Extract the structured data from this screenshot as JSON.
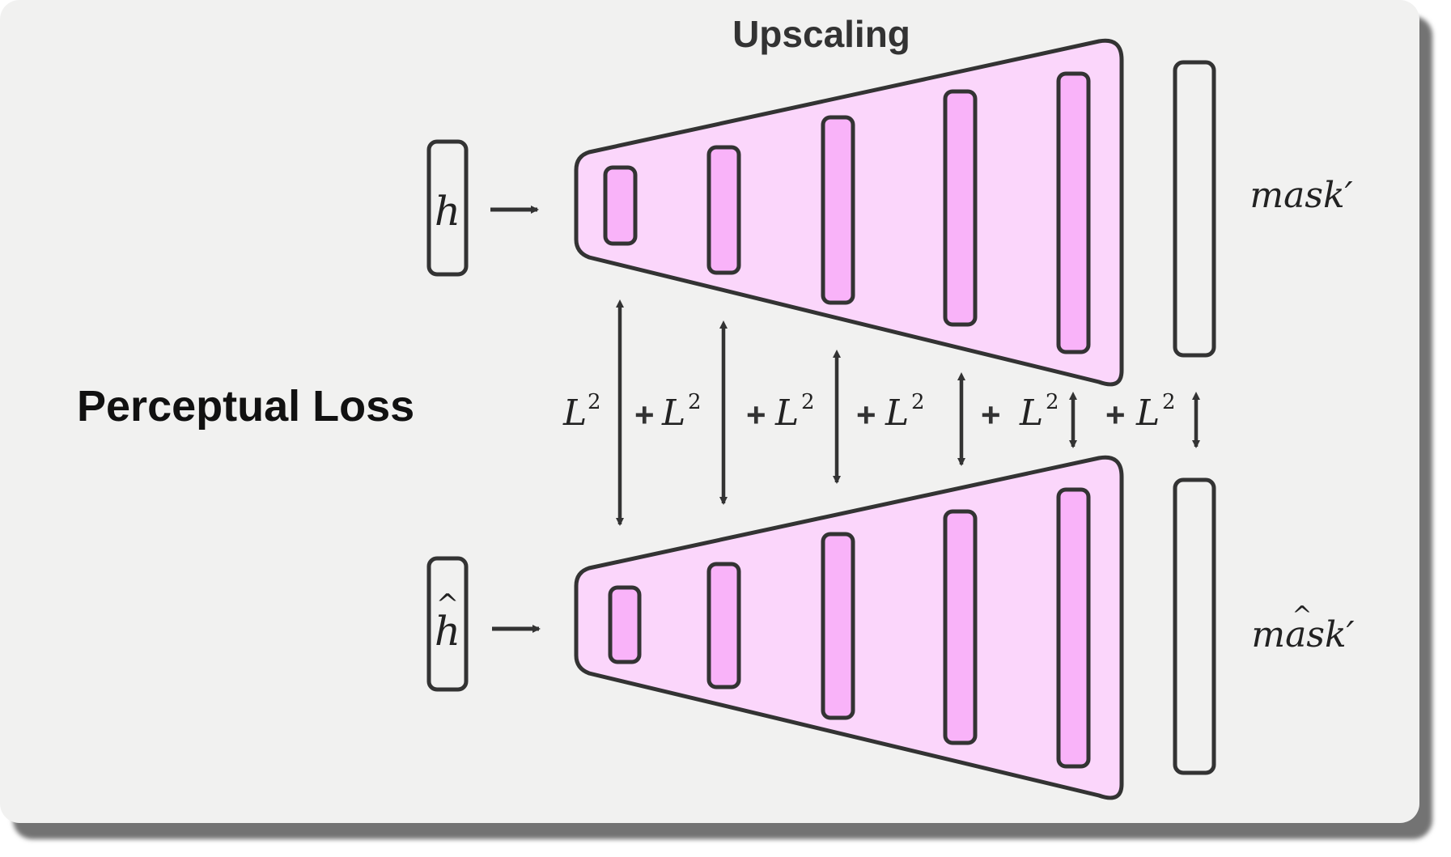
{
  "title": "Upscaling",
  "side_label": "Perceptual Loss",
  "inputs": {
    "top": "h",
    "bottom": "h",
    "bottom_hat": "^"
  },
  "outputs": {
    "top": "mask′",
    "bottom": "mask′",
    "bottom_hat": "^"
  },
  "loss_terms": [
    {
      "plus": "",
      "base": "L",
      "exp": "2"
    },
    {
      "plus": "+",
      "base": "L",
      "exp": "2"
    },
    {
      "plus": "+",
      "base": "L",
      "exp": "2"
    },
    {
      "plus": "+",
      "base": "L",
      "exp": "2"
    },
    {
      "plus": "+",
      "base": "L",
      "exp": "2"
    },
    {
      "plus": "+",
      "base": "L",
      "exp": "2"
    }
  ],
  "colors": {
    "background": "#f1f1f0",
    "trapezoid_fill": "#fbd6fb",
    "layer_fill": "#f9b3f9",
    "stroke": "#333333"
  }
}
